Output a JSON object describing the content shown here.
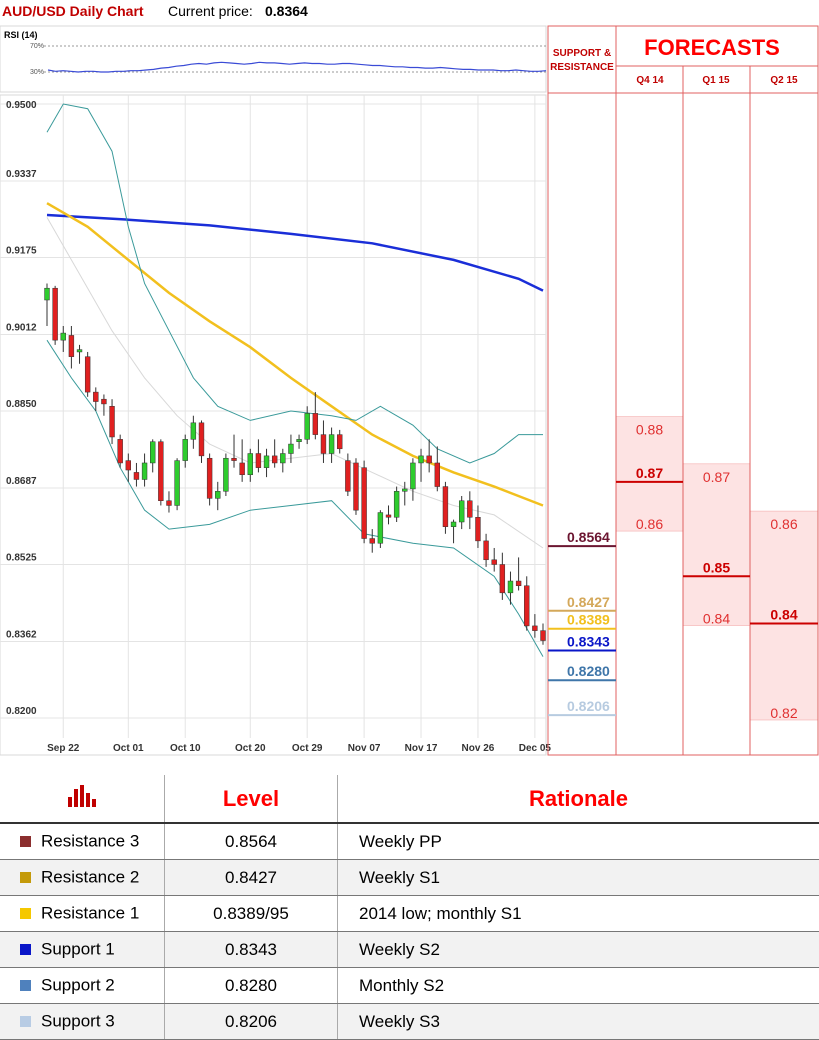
{
  "header": {
    "title": "AUD/USD Daily Chart",
    "price_label": "Current price:",
    "price_value": "0.8364"
  },
  "rsi": {
    "label": "RSI (14)",
    "level_high": "70%",
    "level_low": "30%",
    "values": [
      33,
      31,
      32,
      31,
      30,
      31,
      31,
      30,
      30,
      31,
      31,
      32,
      32,
      33,
      34,
      36,
      37,
      39,
      40,
      42,
      43,
      42,
      44,
      45,
      44,
      43,
      42,
      43,
      45,
      44,
      44,
      43,
      42,
      43,
      44,
      43,
      43,
      42,
      42,
      43,
      43,
      42,
      41,
      40,
      40,
      39,
      38,
      38,
      37,
      37,
      36,
      36,
      37,
      36,
      35,
      34,
      34,
      33,
      33,
      33,
      32,
      32,
      33,
      32,
      31,
      31,
      32
    ]
  },
  "chart_data": {
    "type": "candlestick",
    "title": "AUD/USD Daily Chart",
    "y_ticks": [
      "0.9500",
      "0.9337",
      "0.9175",
      "0.9012",
      "0.8850",
      "0.8687",
      "0.8525",
      "0.8362",
      "0.8200"
    ],
    "ylim": [
      0.82,
      0.95
    ],
    "x_ticks": [
      "Sep 22",
      "Oct 01",
      "Oct 10",
      "Oct 20",
      "Oct 29",
      "Nov 07",
      "Nov 17",
      "Nov 26",
      "Dec 05"
    ],
    "grid": true,
    "candles": [
      {
        "o": 0.9085,
        "h": 0.912,
        "l": 0.903,
        "c": 0.911
      },
      {
        "o": 0.911,
        "h": 0.9115,
        "l": 0.899,
        "c": 0.9
      },
      {
        "o": 0.9,
        "h": 0.903,
        "l": 0.8975,
        "c": 0.9015
      },
      {
        "o": 0.901,
        "h": 0.903,
        "l": 0.894,
        "c": 0.8965
      },
      {
        "o": 0.8975,
        "h": 0.899,
        "l": 0.895,
        "c": 0.898
      },
      {
        "o": 0.8965,
        "h": 0.8975,
        "l": 0.888,
        "c": 0.889
      },
      {
        "o": 0.889,
        "h": 0.89,
        "l": 0.885,
        "c": 0.887
      },
      {
        "o": 0.8875,
        "h": 0.8885,
        "l": 0.884,
        "c": 0.8865
      },
      {
        "o": 0.886,
        "h": 0.8875,
        "l": 0.878,
        "c": 0.8795
      },
      {
        "o": 0.879,
        "h": 0.88,
        "l": 0.873,
        "c": 0.874
      },
      {
        "o": 0.8745,
        "h": 0.876,
        "l": 0.87,
        "c": 0.8725
      },
      {
        "o": 0.872,
        "h": 0.874,
        "l": 0.869,
        "c": 0.8705
      },
      {
        "o": 0.8705,
        "h": 0.876,
        "l": 0.869,
        "c": 0.874
      },
      {
        "o": 0.874,
        "h": 0.879,
        "l": 0.872,
        "c": 0.8785
      },
      {
        "o": 0.8785,
        "h": 0.879,
        "l": 0.865,
        "c": 0.866
      },
      {
        "o": 0.866,
        "h": 0.868,
        "l": 0.8635,
        "c": 0.865
      },
      {
        "o": 0.865,
        "h": 0.875,
        "l": 0.864,
        "c": 0.8745
      },
      {
        "o": 0.8745,
        "h": 0.88,
        "l": 0.873,
        "c": 0.879
      },
      {
        "o": 0.879,
        "h": 0.884,
        "l": 0.877,
        "c": 0.8825
      },
      {
        "o": 0.8825,
        "h": 0.883,
        "l": 0.874,
        "c": 0.8755
      },
      {
        "o": 0.875,
        "h": 0.876,
        "l": 0.865,
        "c": 0.8665
      },
      {
        "o": 0.8665,
        "h": 0.87,
        "l": 0.864,
        "c": 0.868
      },
      {
        "o": 0.868,
        "h": 0.876,
        "l": 0.867,
        "c": 0.875
      },
      {
        "o": 0.875,
        "h": 0.88,
        "l": 0.873,
        "c": 0.8745
      },
      {
        "o": 0.874,
        "h": 0.879,
        "l": 0.87,
        "c": 0.8715
      },
      {
        "o": 0.8715,
        "h": 0.877,
        "l": 0.87,
        "c": 0.876
      },
      {
        "o": 0.876,
        "h": 0.879,
        "l": 0.872,
        "c": 0.873
      },
      {
        "o": 0.873,
        "h": 0.877,
        "l": 0.871,
        "c": 0.8755
      },
      {
        "o": 0.8755,
        "h": 0.879,
        "l": 0.873,
        "c": 0.874
      },
      {
        "o": 0.874,
        "h": 0.877,
        "l": 0.872,
        "c": 0.876
      },
      {
        "o": 0.876,
        "h": 0.88,
        "l": 0.874,
        "c": 0.878
      },
      {
        "o": 0.8785,
        "h": 0.88,
        "l": 0.877,
        "c": 0.879
      },
      {
        "o": 0.879,
        "h": 0.886,
        "l": 0.878,
        "c": 0.8845
      },
      {
        "o": 0.8845,
        "h": 0.889,
        "l": 0.879,
        "c": 0.88
      },
      {
        "o": 0.88,
        "h": 0.883,
        "l": 0.874,
        "c": 0.876
      },
      {
        "o": 0.876,
        "h": 0.8815,
        "l": 0.874,
        "c": 0.88
      },
      {
        "o": 0.88,
        "h": 0.881,
        "l": 0.876,
        "c": 0.877
      },
      {
        "o": 0.8745,
        "h": 0.876,
        "l": 0.867,
        "c": 0.868
      },
      {
        "o": 0.874,
        "h": 0.875,
        "l": 0.863,
        "c": 0.864
      },
      {
        "o": 0.873,
        "h": 0.8745,
        "l": 0.857,
        "c": 0.858
      },
      {
        "o": 0.858,
        "h": 0.86,
        "l": 0.855,
        "c": 0.857
      },
      {
        "o": 0.857,
        "h": 0.864,
        "l": 0.856,
        "c": 0.8635
      },
      {
        "o": 0.863,
        "h": 0.865,
        "l": 0.861,
        "c": 0.8625
      },
      {
        "o": 0.8625,
        "h": 0.869,
        "l": 0.8615,
        "c": 0.868
      },
      {
        "o": 0.868,
        "h": 0.87,
        "l": 0.865,
        "c": 0.8685
      },
      {
        "o": 0.8685,
        "h": 0.875,
        "l": 0.866,
        "c": 0.874
      },
      {
        "o": 0.874,
        "h": 0.877,
        "l": 0.87,
        "c": 0.8755
      },
      {
        "o": 0.8755,
        "h": 0.879,
        "l": 0.872,
        "c": 0.874
      },
      {
        "o": 0.874,
        "h": 0.8775,
        "l": 0.868,
        "c": 0.869
      },
      {
        "o": 0.869,
        "h": 0.87,
        "l": 0.859,
        "c": 0.8605
      },
      {
        "o": 0.8605,
        "h": 0.862,
        "l": 0.857,
        "c": 0.8615
      },
      {
        "o": 0.8615,
        "h": 0.867,
        "l": 0.86,
        "c": 0.866
      },
      {
        "o": 0.866,
        "h": 0.868,
        "l": 0.86,
        "c": 0.8625
      },
      {
        "o": 0.8625,
        "h": 0.865,
        "l": 0.856,
        "c": 0.8575
      },
      {
        "o": 0.8575,
        "h": 0.859,
        "l": 0.852,
        "c": 0.8535
      },
      {
        "o": 0.8535,
        "h": 0.856,
        "l": 0.851,
        "c": 0.8525
      },
      {
        "o": 0.8525,
        "h": 0.855,
        "l": 0.845,
        "c": 0.8465
      },
      {
        "o": 0.8465,
        "h": 0.851,
        "l": 0.844,
        "c": 0.849
      },
      {
        "o": 0.849,
        "h": 0.854,
        "l": 0.847,
        "c": 0.848
      },
      {
        "o": 0.848,
        "h": 0.85,
        "l": 0.8385,
        "c": 0.8395
      },
      {
        "o": 0.8395,
        "h": 0.842,
        "l": 0.837,
        "c": 0.8385
      },
      {
        "o": 0.8385,
        "h": 0.84,
        "l": 0.8355,
        "c": 0.8364
      }
    ],
    "series": [
      {
        "name": "",
        "color": "#1a2ed8",
        "values": [
          [
            0,
            0.9265
          ],
          [
            10,
            0.9255
          ],
          [
            20,
            0.9243
          ],
          [
            30,
            0.9225
          ],
          [
            40,
            0.9205
          ],
          [
            50,
            0.917
          ],
          [
            58,
            0.913
          ],
          [
            61,
            0.9105
          ]
        ]
      },
      {
        "name": "",
        "color": "#f2c01e",
        "values": [
          [
            0,
            0.929
          ],
          [
            5,
            0.924
          ],
          [
            10,
            0.917
          ],
          [
            15,
            0.91
          ],
          [
            20,
            0.904
          ],
          [
            25,
            0.8985
          ],
          [
            30,
            0.892
          ],
          [
            35,
            0.886
          ],
          [
            40,
            0.88
          ],
          [
            45,
            0.8755
          ],
          [
            50,
            0.872
          ],
          [
            55,
            0.869
          ],
          [
            61,
            0.865
          ]
        ]
      },
      {
        "name": "",
        "color": "#3a9a9a",
        "values": [
          [
            0,
            0.9
          ],
          [
            3,
            0.892
          ],
          [
            6,
            0.885
          ],
          [
            9,
            0.873
          ],
          [
            12,
            0.864
          ],
          [
            15,
            0.86
          ],
          [
            20,
            0.861
          ],
          [
            25,
            0.864
          ],
          [
            30,
            0.865
          ],
          [
            35,
            0.866
          ],
          [
            39,
            0.859
          ],
          [
            45,
            0.857
          ],
          [
            50,
            0.856
          ],
          [
            55,
            0.85
          ],
          [
            58,
            0.842
          ],
          [
            61,
            0.833
          ]
        ]
      },
      {
        "name": "",
        "color": "#3a9a9a",
        "values": [
          [
            0,
            0.944
          ],
          [
            2,
            0.95
          ],
          [
            5,
            0.949
          ],
          [
            8,
            0.94
          ],
          [
            10,
            0.924
          ],
          [
            12,
            0.912
          ],
          [
            15,
            0.902
          ],
          [
            18,
            0.892
          ],
          [
            21,
            0.886
          ],
          [
            25,
            0.883
          ],
          [
            30,
            0.885
          ],
          [
            35,
            0.884
          ],
          [
            38,
            0.883
          ],
          [
            41,
            0.886
          ],
          [
            45,
            0.882
          ],
          [
            48,
            0.877
          ],
          [
            52,
            0.874
          ],
          [
            55,
            0.876
          ],
          [
            58,
            0.88
          ],
          [
            61,
            0.88
          ]
        ]
      },
      {
        "name": "",
        "color": "#d8d8d8",
        "values": [
          [
            0,
            0.926
          ],
          [
            4,
            0.914
          ],
          [
            8,
            0.902
          ],
          [
            12,
            0.892
          ],
          [
            16,
            0.884
          ],
          [
            20,
            0.878
          ],
          [
            25,
            0.874
          ],
          [
            30,
            0.875
          ],
          [
            35,
            0.876
          ],
          [
            40,
            0.872
          ],
          [
            45,
            0.868
          ],
          [
            50,
            0.865
          ],
          [
            55,
            0.863
          ],
          [
            61,
            0.856
          ]
        ]
      }
    ]
  },
  "support_resistance": {
    "title_line1": "SUPPORT &",
    "title_line2": "RESISTANCE",
    "levels": [
      {
        "label": "0.8564",
        "value": 0.8564,
        "color": "#6b1530"
      },
      {
        "label": "0.8427",
        "value": 0.8427,
        "color": "#d4a85a"
      },
      {
        "label": "0.8389",
        "value": 0.8389,
        "color": "#f2c01e"
      },
      {
        "label": "0.8343",
        "value": 0.8343,
        "color": "#0a16c8"
      },
      {
        "label": "0.8280",
        "value": 0.828,
        "color": "#3f76a9"
      },
      {
        "label": "0.8206",
        "value": 0.8206,
        "color": "#b7cbe0"
      }
    ]
  },
  "forecasts": {
    "title": "FORECASTS",
    "columns": [
      {
        "label": "Q4 14",
        "high": 0.88,
        "high_label": "0.88",
        "mid": 0.87,
        "mid_label": "0.87",
        "low": 0.86,
        "low_label": "0.86"
      },
      {
        "label": "Q1 15",
        "high": 0.87,
        "high_label": "0.87",
        "mid": 0.85,
        "mid_label": "0.85",
        "low": 0.84,
        "low_label": "0.84"
      },
      {
        "label": "Q2 15",
        "high": 0.86,
        "high_label": "0.86",
        "mid": 0.84,
        "mid_label": "0.84",
        "low": 0.82,
        "low_label": "0.82"
      }
    ]
  },
  "table": {
    "col_level": "Level",
    "col_rationale": "Rationale",
    "rows": [
      {
        "name": "Resistance 3",
        "level": "0.8564",
        "rationale": "Weekly PP",
        "color": "#8b2e2e"
      },
      {
        "name": "Resistance 2",
        "level": "0.8427",
        "rationale": "Weekly S1",
        "color": "#c49a0a"
      },
      {
        "name": "Resistance 1",
        "level": "0.8389/95",
        "rationale": "2014 low; monthly S1",
        "color": "#f5c800"
      },
      {
        "name": "Support 1",
        "level": "0.8343",
        "rationale": "Weekly S2",
        "color": "#0a16c8"
      },
      {
        "name": "Support 2",
        "level": "0.8280",
        "rationale": "Monthly S2",
        "color": "#4f81bd"
      },
      {
        "name": "Support 3",
        "level": "0.8206",
        "rationale": "Weekly S3",
        "color": "#b8cce4"
      }
    ]
  }
}
